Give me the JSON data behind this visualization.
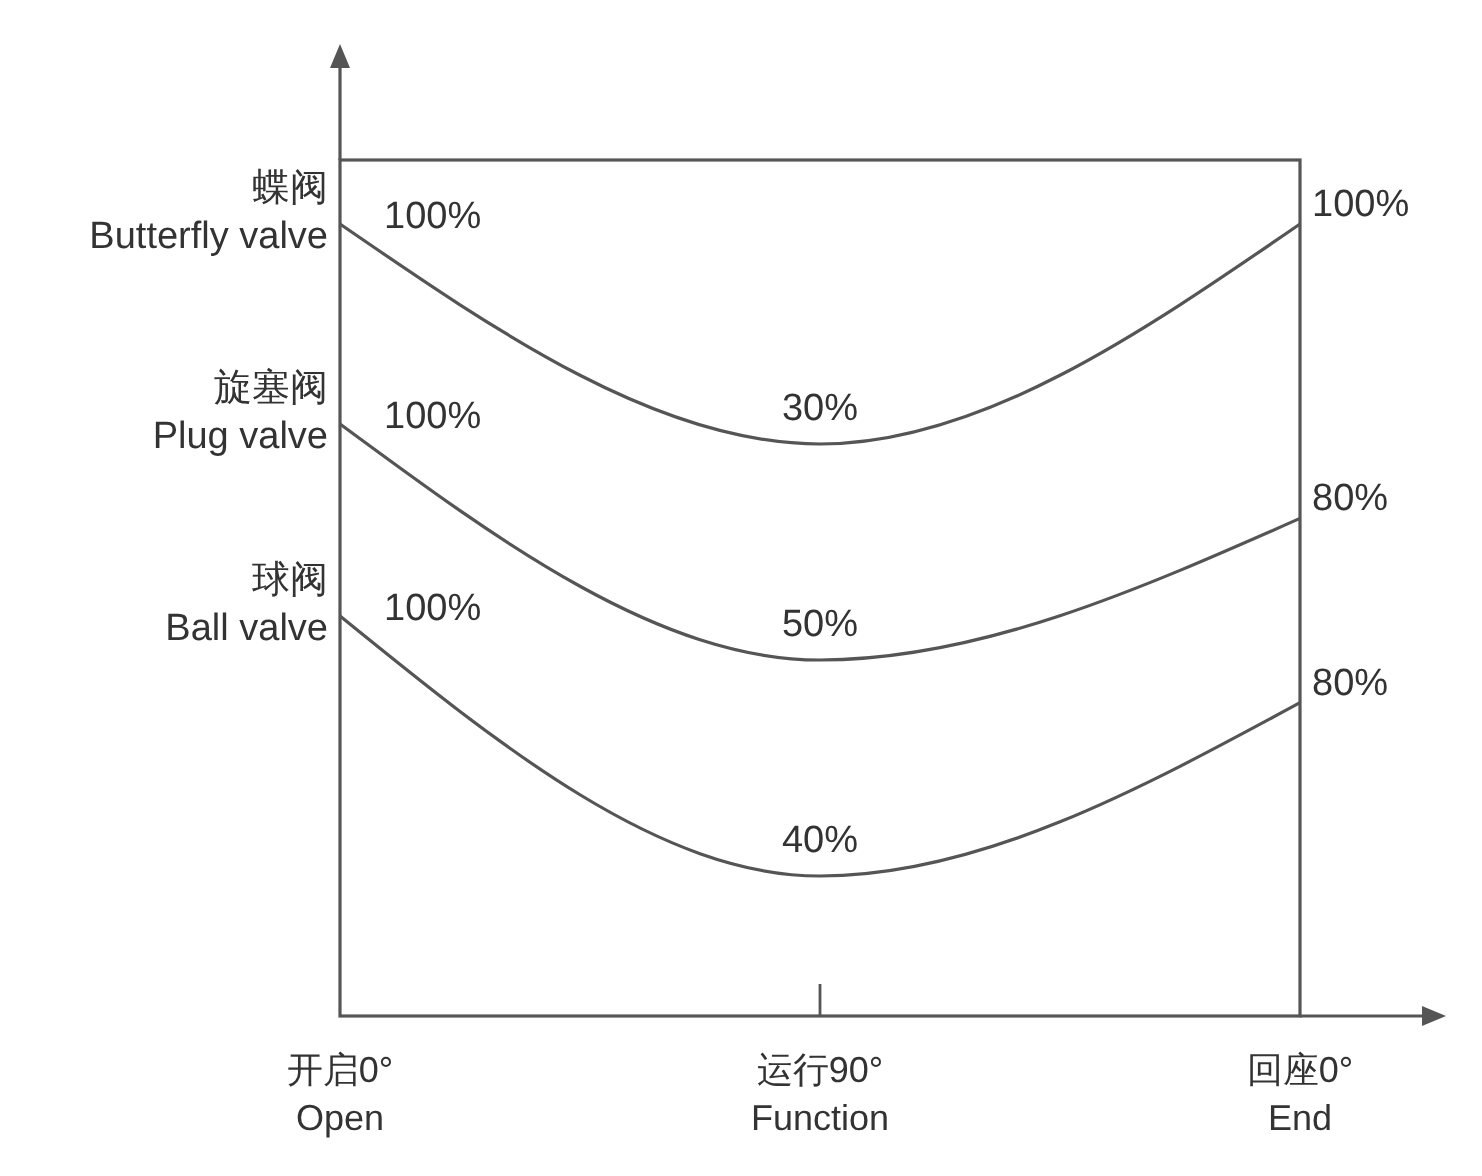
{
  "chart_data": [
    {
      "type": "line",
      "categories": [
        null,
        null,
        null
      ],
      "tick_labels": false,
      "series": [
        {
          "name": "蝶阀\nButterfly valve",
          "color": "#555555",
          "values": [
            100,
            30,
            100
          ],
          "value_labels": [
            "100%",
            "30%",
            "100%"
          ]
        }
      ]
    },
    {
      "type": "line",
      "categories": [
        null,
        null,
        null
      ],
      "tick_labels": false,
      "series": [
        {
          "name": "旋塞阀\nPlug valve",
          "color": "#555555",
          "values": [
            100,
            50,
            80
          ],
          "value_labels": [
            "100%",
            "50%",
            "80%"
          ]
        }
      ]
    },
    {
      "type": "line",
      "categories": [
        "开启0°\nOpen",
        "运行90°\nFunction",
        "回座0°\nEnd"
      ],
      "tick_labels": "x",
      "series": [
        {
          "name": "球阀\nBall valve",
          "color": "#555555",
          "values": [
            100,
            40,
            80
          ],
          "value_labels": [
            "100%",
            "40%",
            "80%"
          ]
        }
      ]
    }
  ]
}
